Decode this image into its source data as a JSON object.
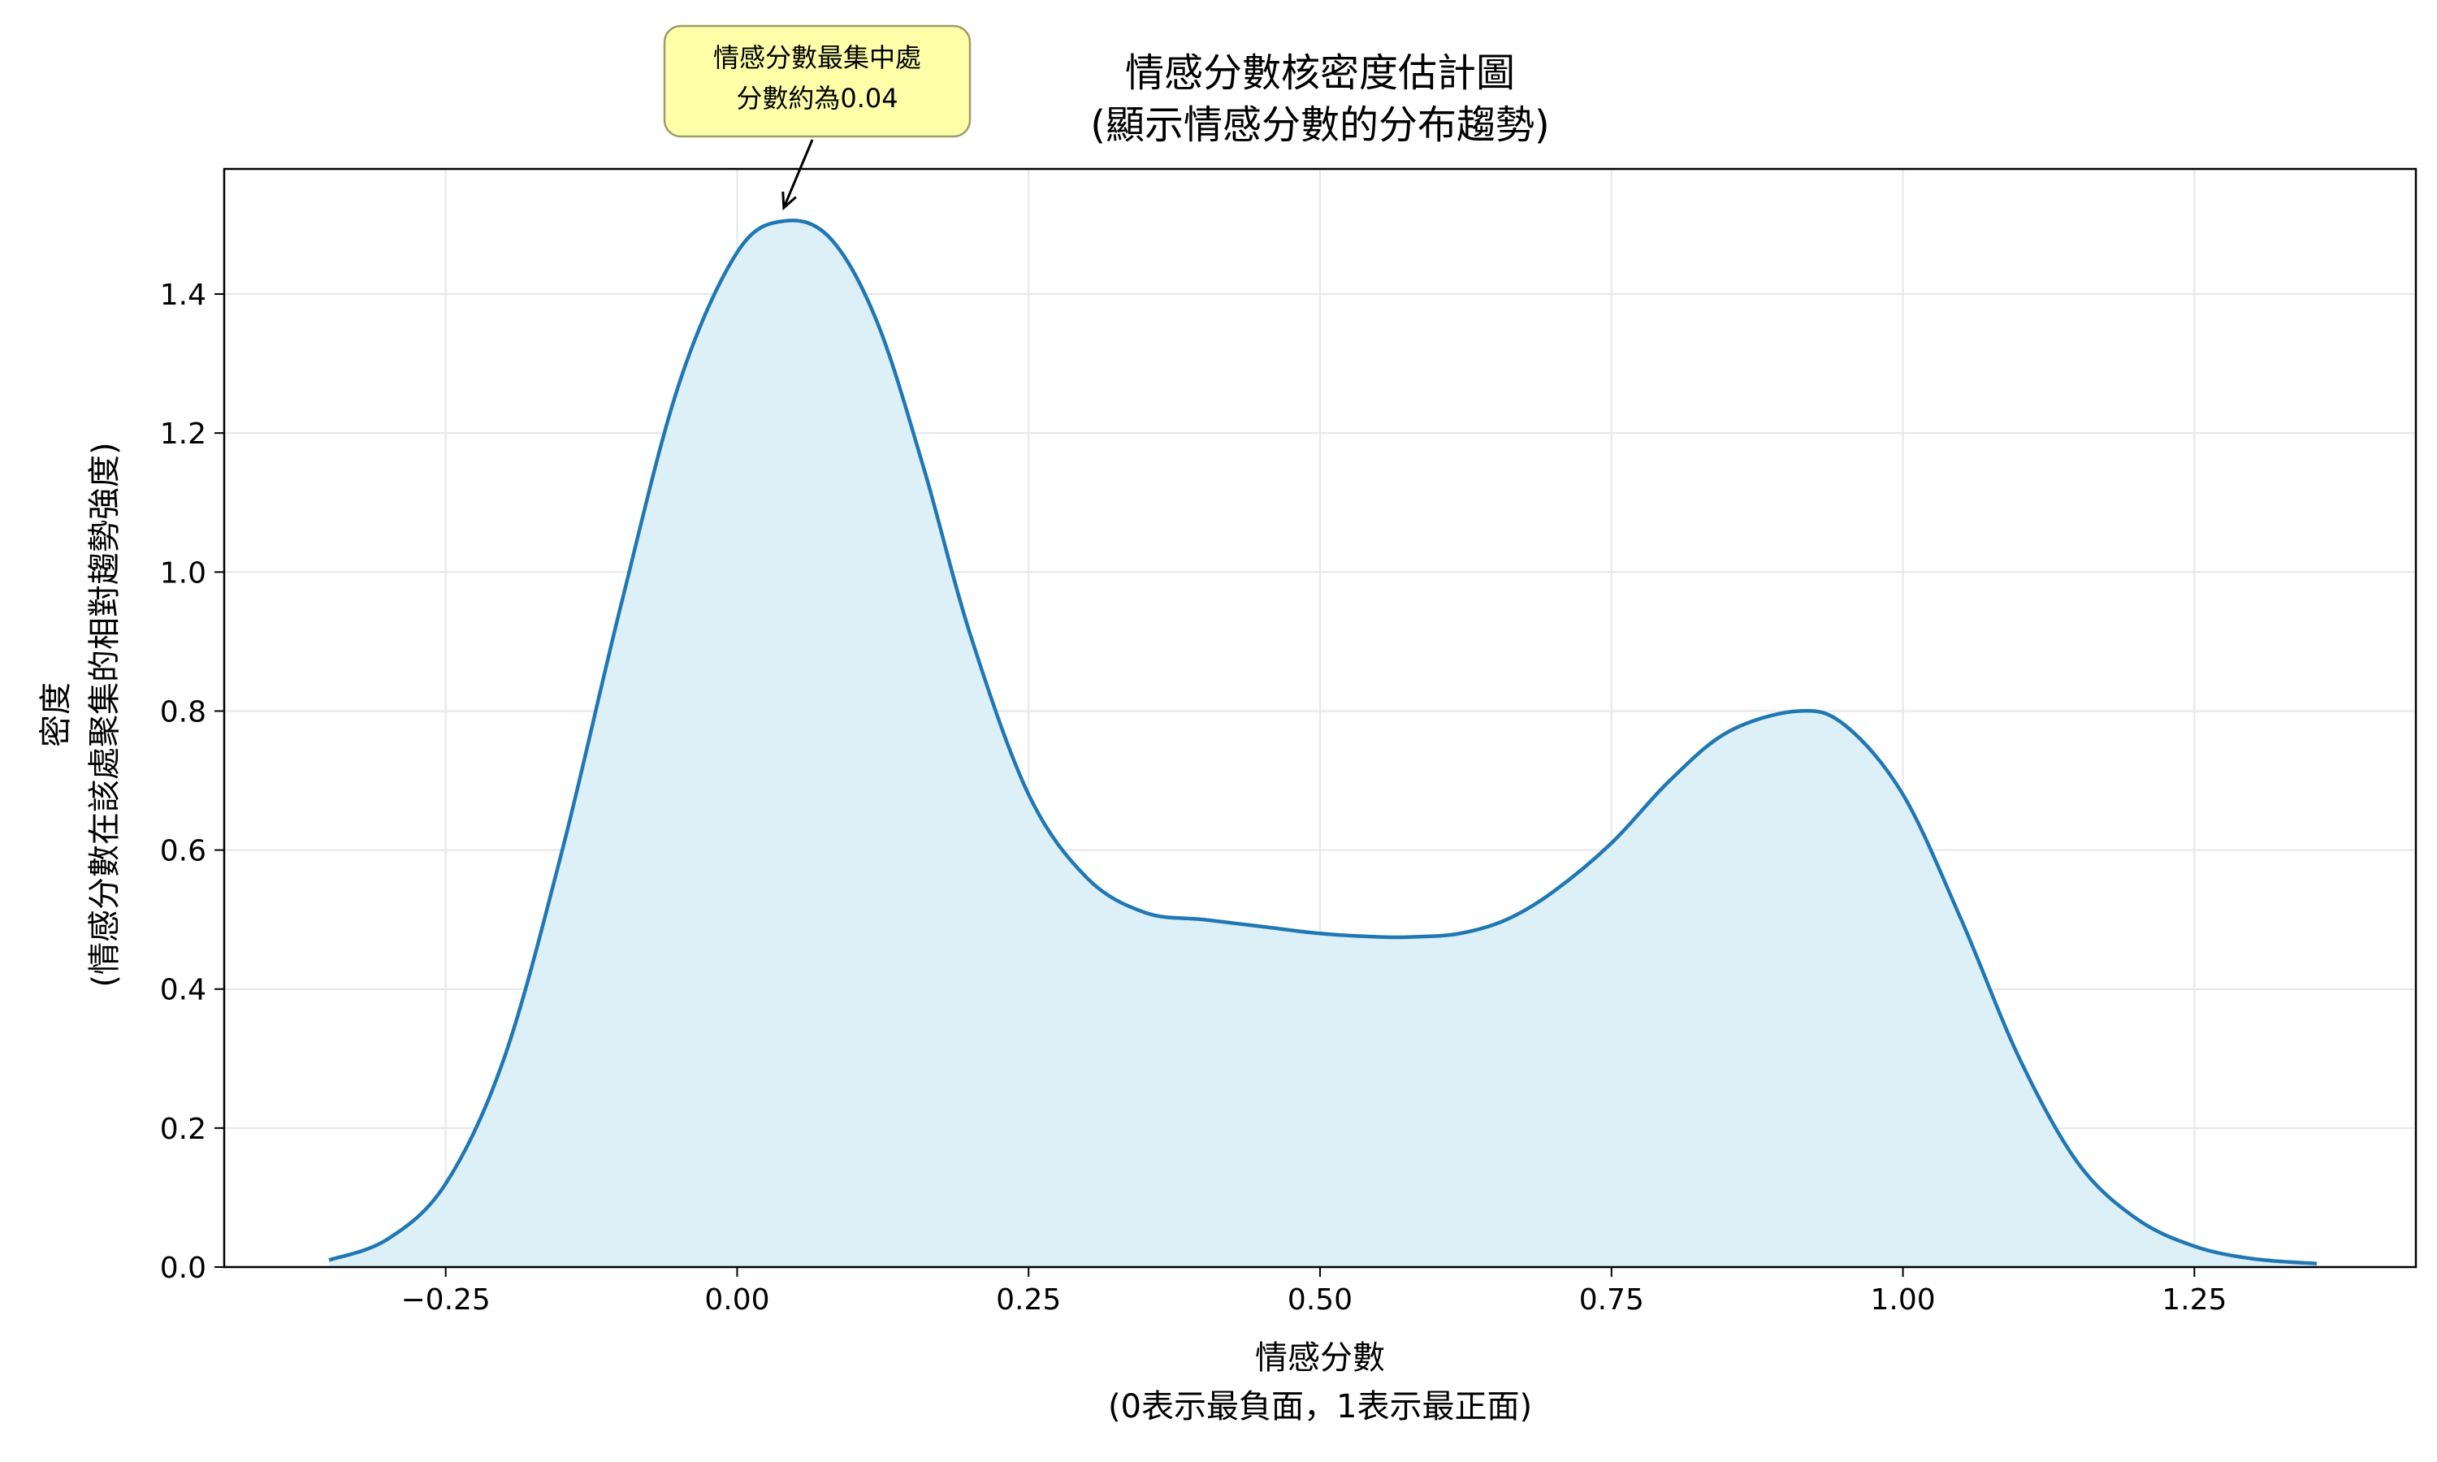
{
  "chart_data": {
    "type": "area",
    "title": [
      "情感分數核密度估計圖",
      "(顯示情感分數的分布趨勢)"
    ],
    "xlabel": [
      "情感分數",
      "(0表示最負面，1表示最正面)"
    ],
    "ylabel": [
      "密度",
      "(情感分數在該處聚集的相對趨勢強度)"
    ],
    "xlim": [
      -0.44,
      1.44
    ],
    "ylim": [
      0,
      1.58
    ],
    "xticks": [
      -0.25,
      0.0,
      0.25,
      0.5,
      0.75,
      1.0,
      1.25
    ],
    "xtick_labels": [
      "−0.25",
      "0.00",
      "0.25",
      "0.50",
      "0.75",
      "1.00",
      "1.25"
    ],
    "yticks": [
      0.0,
      0.2,
      0.4,
      0.6,
      0.8,
      1.0,
      1.2,
      1.4
    ],
    "ytick_labels": [
      "0.0",
      "0.2",
      "0.4",
      "0.6",
      "0.8",
      "1.0",
      "1.2",
      "1.4"
    ],
    "grid": true,
    "line_color": "#1f77b4",
    "fill_color": "#ddf0f8",
    "annotation": {
      "text": [
        "情感分數最集中處",
        "分數約為0.04"
      ],
      "point": [
        0.04,
        1.51
      ],
      "box_color": "#ffffaa"
    },
    "series": [
      {
        "x": [
          -0.35,
          -0.3,
          -0.25,
          -0.2,
          -0.15,
          -0.1,
          -0.05,
          0.0,
          0.04,
          0.08,
          0.12,
          0.16,
          0.2,
          0.25,
          0.3,
          0.35,
          0.4,
          0.45,
          0.5,
          0.55,
          0.58,
          0.62,
          0.66,
          0.7,
          0.75,
          0.8,
          0.85,
          0.91,
          0.95,
          1.0,
          1.05,
          1.1,
          1.15,
          1.2,
          1.25,
          1.3,
          1.355
        ],
        "y": [
          0.01,
          0.04,
          0.12,
          0.3,
          0.6,
          0.95,
          1.27,
          1.46,
          1.505,
          1.48,
          1.36,
          1.15,
          0.91,
          0.68,
          0.56,
          0.51,
          0.5,
          0.49,
          0.48,
          0.475,
          0.475,
          0.48,
          0.5,
          0.54,
          0.61,
          0.7,
          0.77,
          0.8,
          0.78,
          0.68,
          0.5,
          0.3,
          0.15,
          0.07,
          0.03,
          0.012,
          0.005
        ]
      }
    ]
  }
}
